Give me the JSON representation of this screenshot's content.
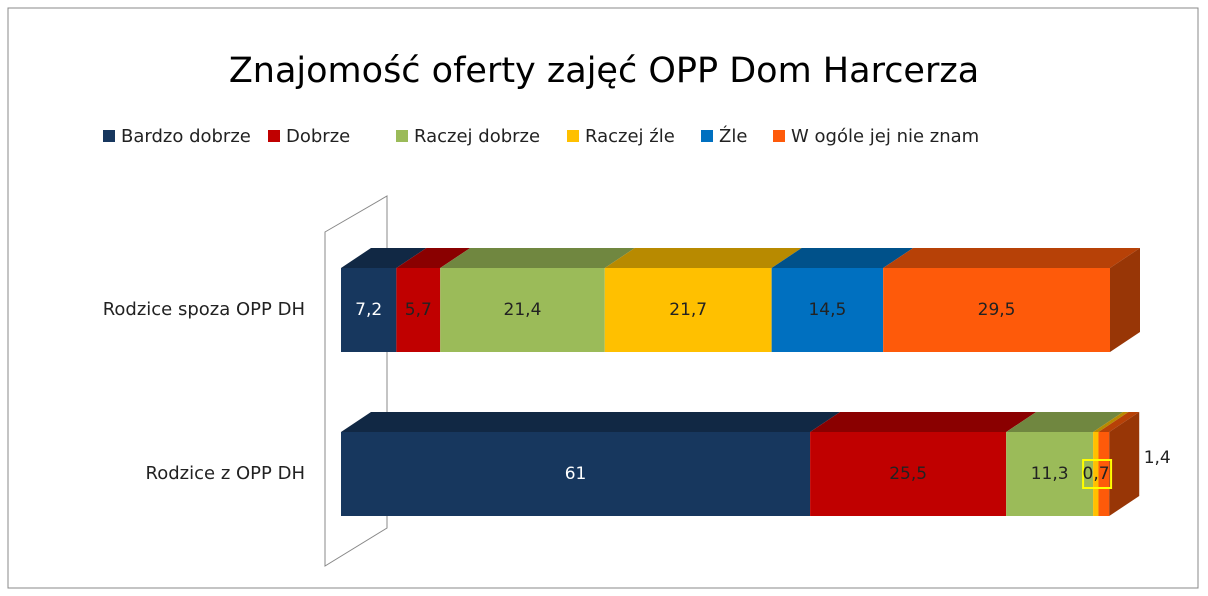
{
  "chart_data": {
    "type": "bar3d_stacked_horizontal",
    "title": "Znajomość oferty zajęć OPP Dom Harcerza",
    "categories": [
      "Rodzice spoza OPP DH",
      "Rodzice z OPP DH"
    ],
    "series": [
      {
        "name": "Bardzo dobrze",
        "color": "#17375e",
        "values": [
          7.2,
          61
        ],
        "value_labels": [
          "7,2",
          "61"
        ]
      },
      {
        "name": "Dobrze",
        "color": "#c00000",
        "values": [
          5.7,
          25.5
        ],
        "value_labels": [
          "5,7",
          "25,5"
        ]
      },
      {
        "name": "Raczej dobrze",
        "color": "#9bbb59",
        "values": [
          21.4,
          11.3
        ],
        "value_labels": [
          "21,4",
          "11,3"
        ]
      },
      {
        "name": "Raczej źle",
        "color": "#ffc000",
        "values": [
          21.7,
          0.7
        ],
        "value_labels": [
          "21,7",
          "0,7"
        ]
      },
      {
        "name": "Źle",
        "color": "#0070c0",
        "values": [
          14.5,
          null
        ],
        "value_labels": [
          "14,5",
          null
        ]
      },
      {
        "name": "W ogóle jej nie znam",
        "color": "#fe5a0a",
        "values": [
          29.5,
          1.4
        ],
        "value_labels": [
          "29,5",
          "1,4"
        ]
      }
    ],
    "xlim": [
      0,
      100
    ],
    "legend": "top"
  }
}
